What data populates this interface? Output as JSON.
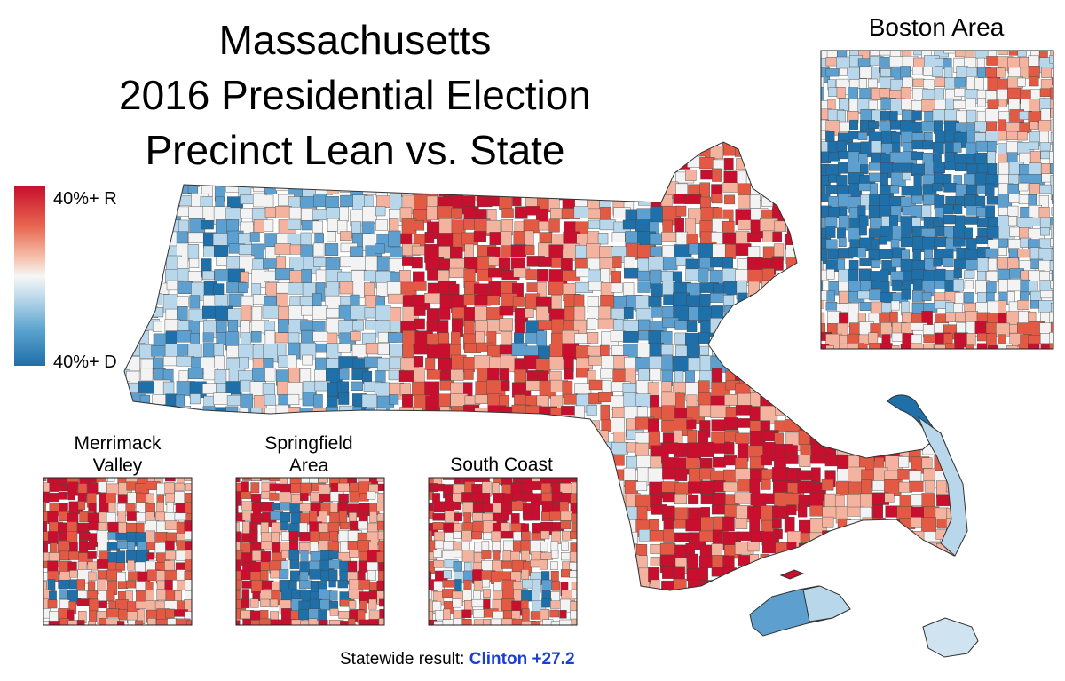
{
  "title": {
    "line1": "Massachusetts",
    "line2": "2016 Presidential Election",
    "line3": "Precinct Lean vs. State"
  },
  "legend": {
    "top_label": "40%+ R",
    "bottom_label": "40%+ D",
    "colors": [
      "#c8102e",
      "#e8664f",
      "#f6c2ad",
      "#f7f7f7",
      "#bcd9ea",
      "#5ba3cf",
      "#1f6fa9"
    ]
  },
  "insets": {
    "boston": "Boston Area",
    "merrimack": "Merrimack\nValley",
    "springfield": "Springfield\nArea",
    "southcoast": "South Coast"
  },
  "statewide": {
    "label": "Statewide result:",
    "value": "Clinton +27.2",
    "value_color": "#1a3fd8"
  },
  "palette": {
    "strong_r": "#c8102e",
    "mid_r": "#e25a44",
    "light_r": "#f4b39e",
    "neutral": "#f3f3f3",
    "light_d": "#b9d7ea",
    "mid_d": "#5d9fce",
    "strong_d": "#1f6fa9"
  }
}
